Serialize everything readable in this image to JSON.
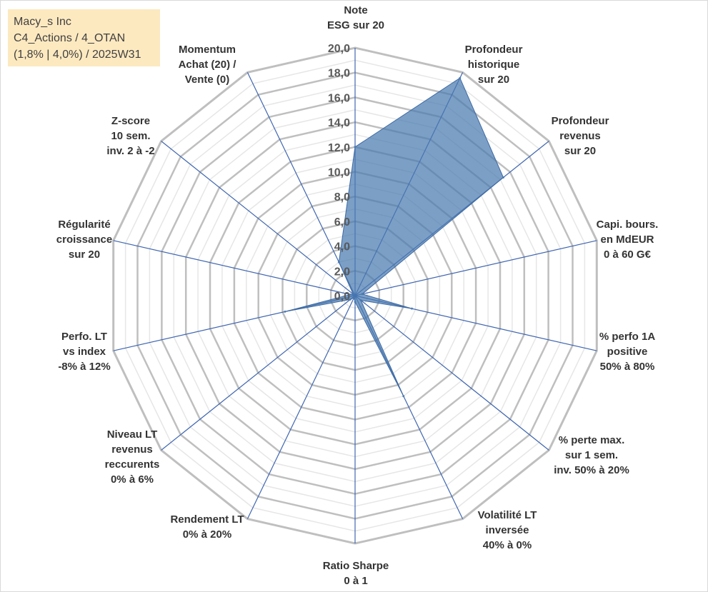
{
  "info_box": {
    "line1": "Macy_s Inc",
    "line2": "C4_Actions / 4_OTAN",
    "line3": "(1,8% | 4,0%) / 2025W31"
  },
  "colors": {
    "fill": "#4a7ab0",
    "fill_opacity": 0.72,
    "spoke": "#3f66b0",
    "grid_minor": "#e6e6e6",
    "grid_major": "#bfbfbf",
    "info_box_bg": "#fde9c0"
  },
  "chart_data": {
    "type": "radar",
    "title": "",
    "range": [
      0,
      20
    ],
    "grid": true,
    "tick_labels": [
      "0,0",
      "2,0",
      "4,0",
      "6,0",
      "8,0",
      "10,0",
      "12,0",
      "14,0",
      "16,0",
      "18,0",
      "20,0"
    ],
    "axes": [
      {
        "label": [
          "Note",
          "ESG sur 20"
        ],
        "value": 12.0
      },
      {
        "label": [
          "Profondeur",
          "historique",
          "sur 20"
        ],
        "value": 19.5
      },
      {
        "label": [
          "Profondeur",
          "revenus",
          "sur 20"
        ],
        "value": 15.3
      },
      {
        "label": [
          "Capi. bours.",
          "en MdEUR",
          "0 à 60 G€"
        ],
        "value": 0.6
      },
      {
        "label": [
          "% perfo 1A",
          "positive",
          "50% à 80%"
        ],
        "value": 4.7
      },
      {
        "label": [
          "% perte max.",
          "sur 1 sem.",
          "inv. 50% à 20%"
        ],
        "value": 0.6
      },
      {
        "label": [
          "Volatilité LT",
          "inversée",
          "40% à 0%"
        ],
        "value": 9.0
      },
      {
        "label": [
          "Ratio Sharpe",
          "0 à 1"
        ],
        "value": 0.5
      },
      {
        "label": [
          "Rendement LT",
          "0% à 20%"
        ],
        "value": 0.2
      },
      {
        "label": [
          "Niveau LT",
          "revenus",
          "reccurents",
          "0% à 6%"
        ],
        "value": 0.5
      },
      {
        "label": [
          "Perfo. LT",
          "vs index",
          "-8% à 12%"
        ],
        "value": 5.8
      },
      {
        "label": [
          "Régularité",
          "croissance",
          "sur 20"
        ],
        "value": 0.4
      },
      {
        "label": [
          "Z-score",
          "10 sem.",
          "inv. 2 à -2"
        ],
        "value": 0.2
      },
      {
        "label": [
          "Momentum",
          "Achat (20) /",
          "Vente (0)"
        ],
        "value": 3.0
      }
    ]
  }
}
